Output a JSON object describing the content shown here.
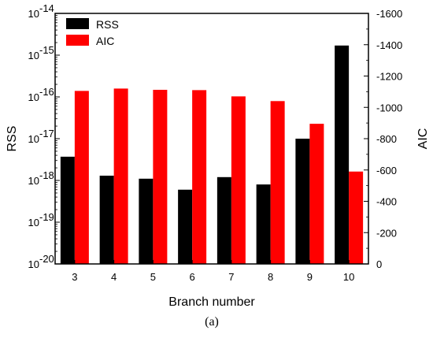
{
  "chart_data": {
    "type": "bar",
    "categories": [
      "3",
      "4",
      "5",
      "6",
      "7",
      "8",
      "9",
      "10"
    ],
    "series": [
      {
        "name": "RSS",
        "axis": "left",
        "color": "#000000",
        "values": [
          3.7e-18,
          1.3e-18,
          1.1e-18,
          6e-19,
          1.2e-18,
          8e-19,
          1e-17,
          1.7e-15
        ]
      },
      {
        "name": "AIC",
        "axis": "right",
        "color": "#ff0000",
        "values": [
          -1105,
          -1120,
          -1112,
          -1110,
          -1070,
          -1040,
          -895,
          -590
        ]
      }
    ],
    "xlabel": "Branch number",
    "ylabel_left": "RSS",
    "ylabel_right": "AIC",
    "ylim_left": [
      1e-20,
      1e-14
    ],
    "yscale_left": "log",
    "ylim_right": [
      0,
      -1600
    ],
    "left_ticks": [
      {
        "value": 1e-20,
        "base": "10",
        "exp": "-20"
      },
      {
        "value": 1e-19,
        "base": "10",
        "exp": "-19"
      },
      {
        "value": 1e-18,
        "base": "10",
        "exp": "-18"
      },
      {
        "value": 1e-17,
        "base": "10",
        "exp": "-17"
      },
      {
        "value": 1e-16,
        "base": "10",
        "exp": "-16"
      },
      {
        "value": 1e-15,
        "base": "10",
        "exp": "-15"
      },
      {
        "value": 1e-14,
        "base": "10",
        "exp": "-14"
      }
    ],
    "right_ticks": [
      0,
      -200,
      -400,
      -600,
      -800,
      -1000,
      -1200,
      -1400,
      -1600
    ],
    "legend_position": "top-left",
    "grid": false,
    "caption": "(a)"
  }
}
